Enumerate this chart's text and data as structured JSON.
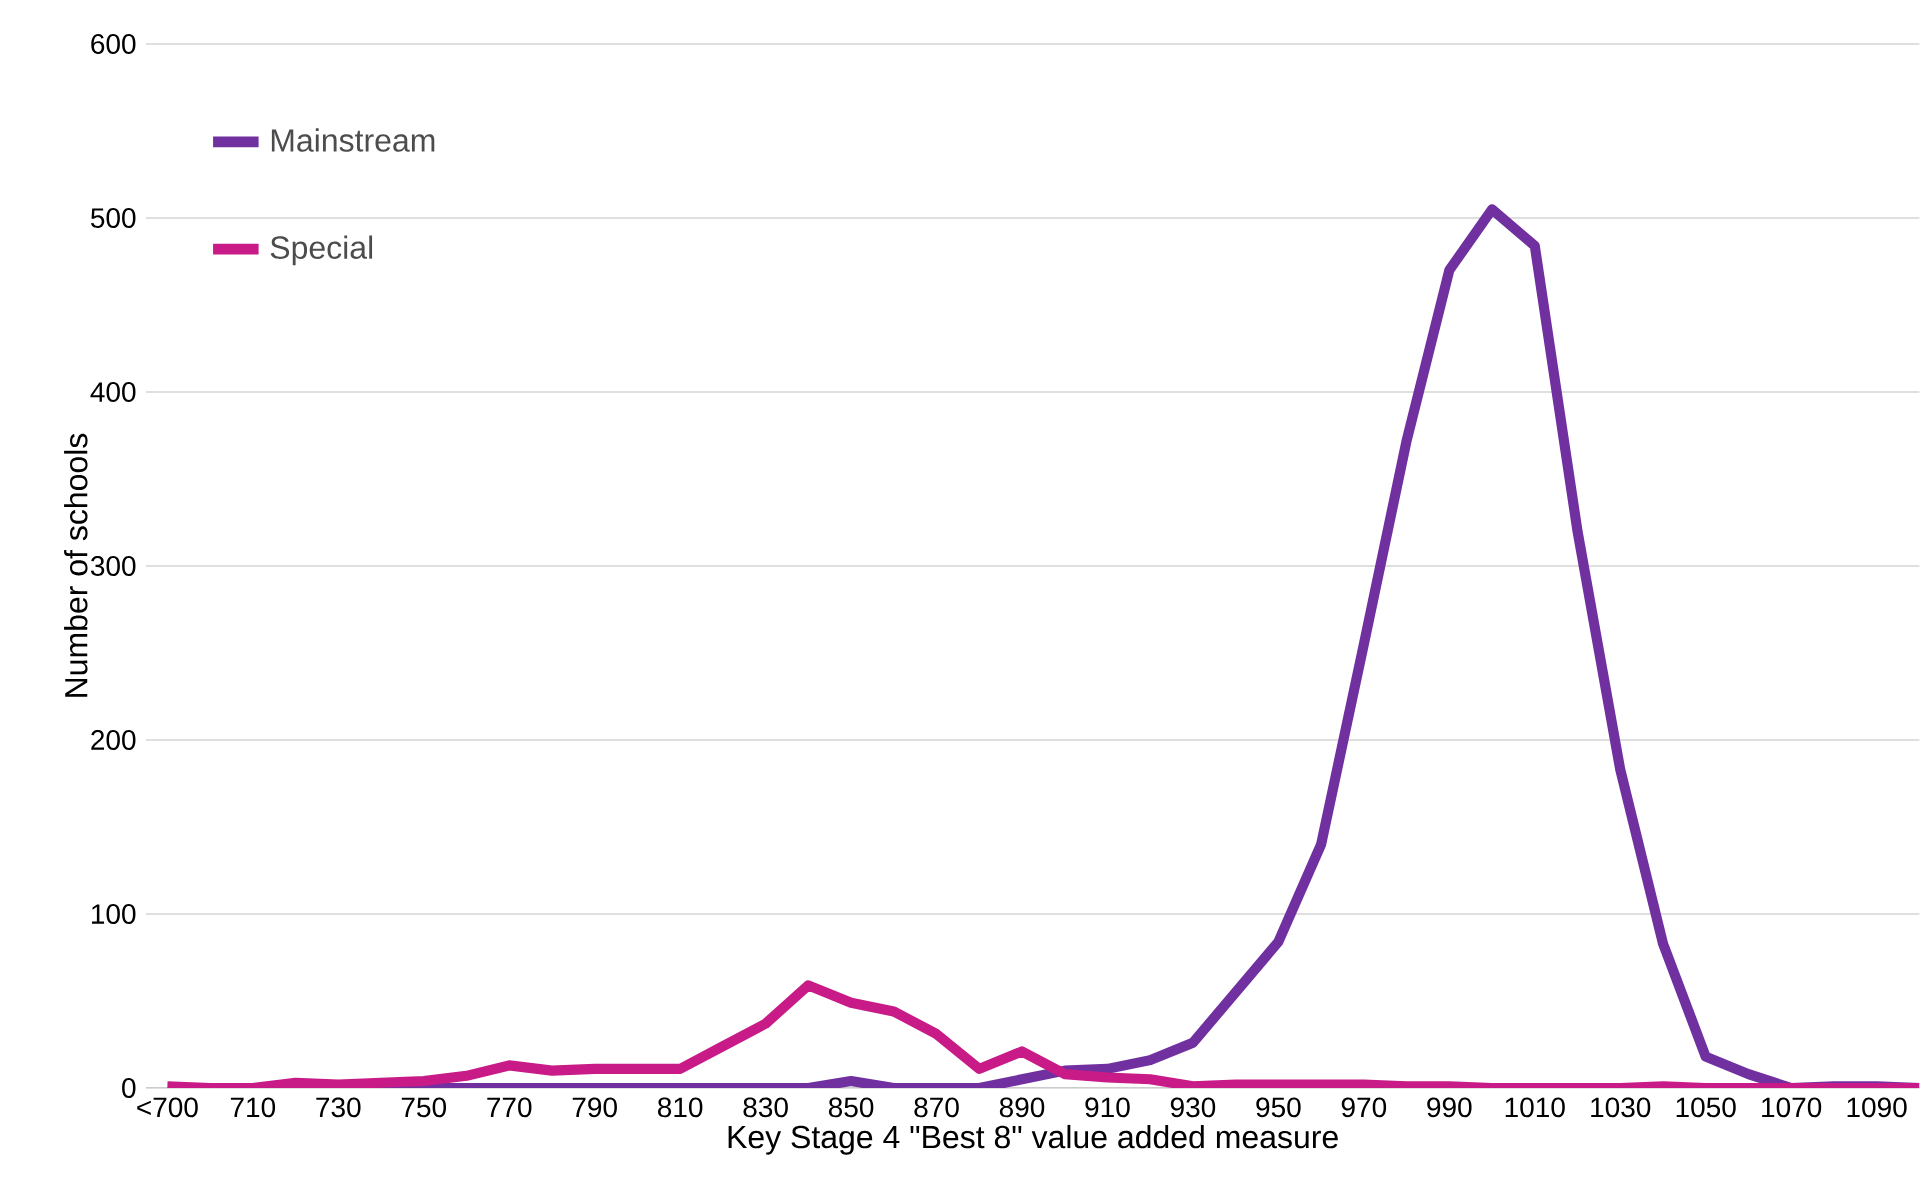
{
  "chart_data": {
    "type": "line",
    "categories": [
      "<700",
      null,
      "710",
      null,
      "730",
      null,
      "750",
      null,
      "770",
      null,
      "790",
      null,
      "810",
      null,
      "830",
      null,
      "850",
      null,
      "870",
      null,
      "890",
      null,
      "910",
      null,
      "930",
      null,
      "950",
      null,
      "970",
      null,
      "990",
      null,
      "1010",
      null,
      "1030",
      null,
      "1050",
      null,
      "1070",
      null,
      "1090",
      null
    ],
    "xlabel": "Key Stage 4 \"Best 8\" value added measure",
    "ylabel": "Number of schools",
    "ylim": [
      0,
      600
    ],
    "yticks": [
      0,
      100,
      200,
      300,
      400,
      500,
      600
    ],
    "grid": "y",
    "legend": "top left",
    "marker": "none",
    "line_style": "solid",
    "series": [
      {
        "name": "Mainstream",
        "color": "#7030a0",
        "values": [
          null,
          null,
          null,
          null,
          0,
          0,
          0,
          0,
          0,
          0,
          0,
          0,
          0,
          0,
          0,
          0,
          4,
          0,
          0,
          0,
          5,
          10,
          11,
          16,
          26,
          55,
          84,
          140,
          255,
          372,
          470,
          505,
          484,
          320,
          183,
          83,
          18,
          8,
          0,
          1,
          1,
          0
        ]
      },
      {
        "name": "Special",
        "color": "#c81b87",
        "values": [
          1,
          0,
          0,
          3,
          2,
          3,
          4,
          7,
          13,
          10,
          11,
          11,
          11,
          24,
          37,
          59,
          49,
          44,
          31,
          11,
          21,
          8,
          6,
          5,
          1,
          2,
          2,
          2,
          2,
          1,
          1,
          0,
          0,
          0,
          0,
          1,
          0,
          0,
          0,
          0,
          0,
          0
        ]
      }
    ]
  }
}
